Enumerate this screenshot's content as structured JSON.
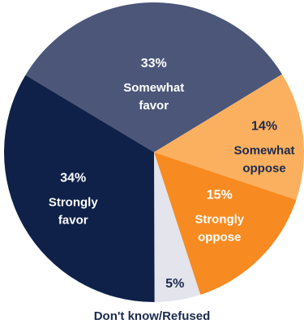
{
  "chart_data": {
    "type": "pie",
    "title": "",
    "slices": [
      {
        "label": "Somewhat favor",
        "label_lines": [
          "Somewhat",
          "favor"
        ],
        "value": 33,
        "pct_text": "33%",
        "color": "#4b5679",
        "text_color": "#ffffff"
      },
      {
        "label": "Somewhat oppose",
        "label_lines": [
          "Somewhat",
          "oppose"
        ],
        "value": 14,
        "pct_text": "14%",
        "color": "#fbb05f",
        "text_color": "#1b2a4e"
      },
      {
        "label": "Strongly oppose",
        "label_lines": [
          "Strongly",
          "oppose"
        ],
        "value": 15,
        "pct_text": "15%",
        "color": "#f78b21",
        "text_color": "#ffffff"
      },
      {
        "label": "Don't know/Refused",
        "label_lines": [],
        "value": 5,
        "pct_text": "5%",
        "color": "#e3e4ec",
        "text_color": "#1b2a4e"
      },
      {
        "label": "Strongly favor",
        "label_lines": [
          "Strongly",
          "favor"
        ],
        "value": 34,
        "pct_text": "34%",
        "color": "#0f2148",
        "text_color": "#ffffff"
      }
    ]
  }
}
